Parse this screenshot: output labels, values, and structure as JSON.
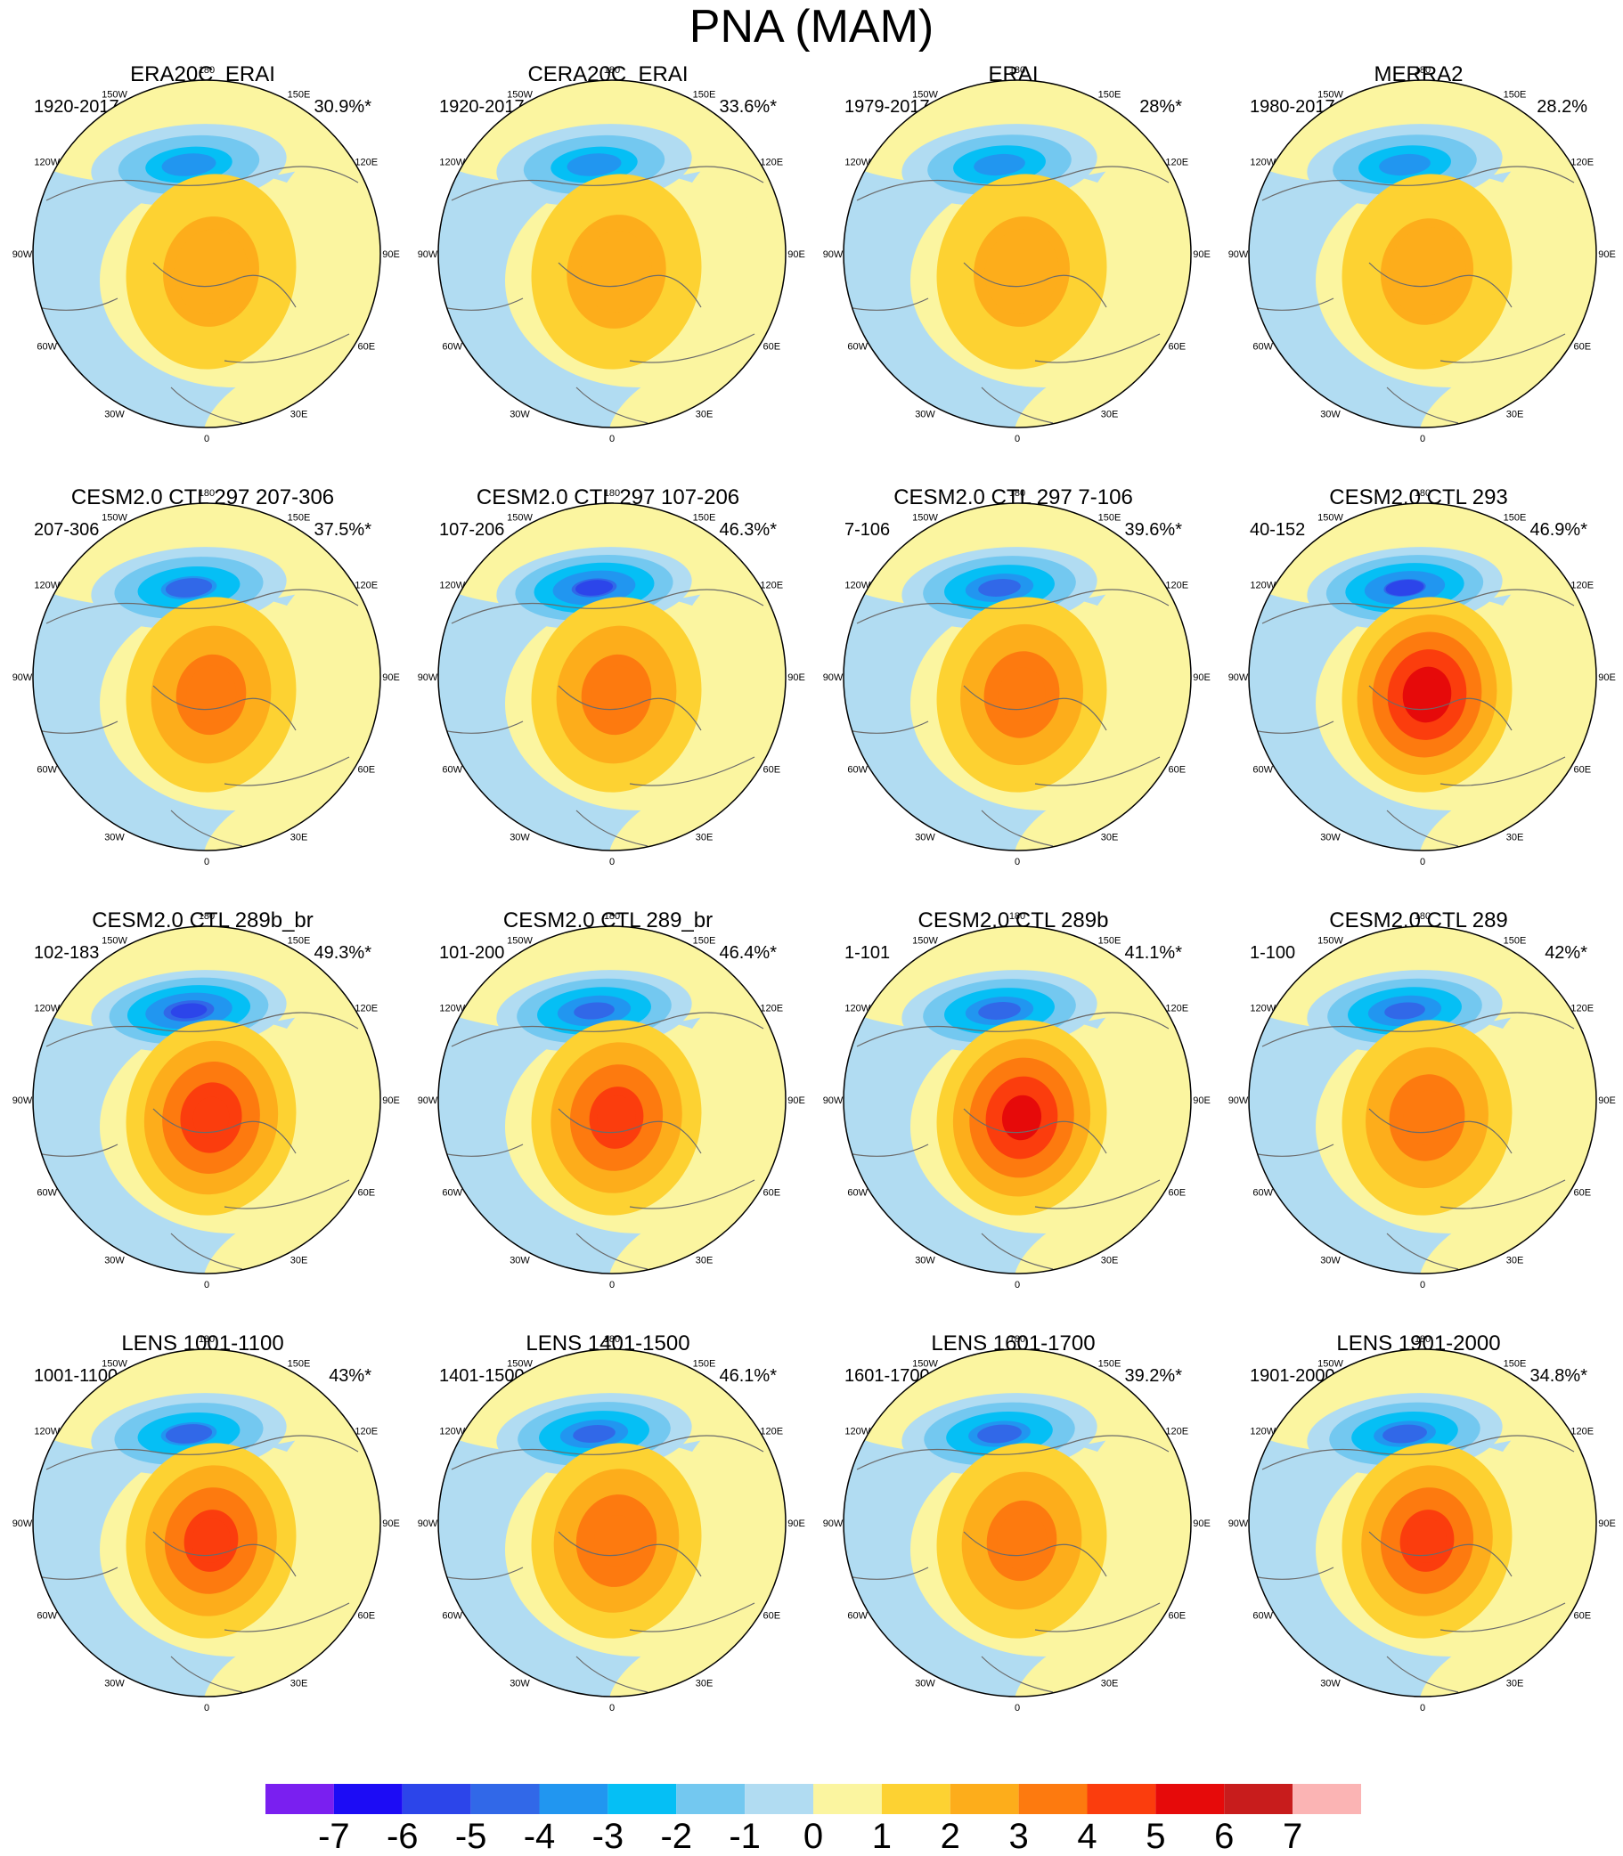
{
  "figure": {
    "title": "PNA (MAM)"
  },
  "chart_data": {
    "type": "polar-contour-map",
    "title": "PNA (MAM)",
    "projection": "north-polar-stereographic",
    "longitude_labels": [
      "180",
      "150E",
      "120E",
      "90E",
      "60E",
      "30E",
      "0",
      "30W",
      "60W",
      "90W",
      "120W",
      "150W"
    ],
    "colorbar": {
      "ticks": [
        "-7",
        "-6",
        "-5",
        "-4",
        "-3",
        "-2",
        "-1",
        "0",
        "1",
        "2",
        "3",
        "4",
        "5",
        "6",
        "7"
      ],
      "colors": [
        "#7a1ff0",
        "#1c0cf5",
        "#2c45ea",
        "#3168e8",
        "#2196f0",
        "#05bff5",
        "#73c8f0",
        "#b1dcf2",
        "#fbf5a0",
        "#fdd232",
        "#fdad1b",
        "#fd7a0f",
        "#fb3d0d",
        "#e60a0a",
        "#c81c1c",
        "#fbb4b4"
      ]
    },
    "panels": [
      {
        "title": "ERA20C_ERAI",
        "period": "1920-2017",
        "percent": "30.9%*",
        "neg_peak": -3.6,
        "pos_peak": 2.3
      },
      {
        "title": "CERA20C_ERAI",
        "period": "1920-2017",
        "percent": "33.6%*",
        "neg_peak": -3.6,
        "pos_peak": 2.4
      },
      {
        "title": "ERAI",
        "period": "1979-2017",
        "percent": "28%*",
        "neg_peak": -3.8,
        "pos_peak": 2.3
      },
      {
        "title": "MERRA2",
        "period": "1980-2017",
        "percent": "28.2%",
        "neg_peak": -3.8,
        "pos_peak": 2.2
      },
      {
        "title": "CESM2.0 CTL 297 207-306",
        "period": "207-306",
        "percent": "37.5%*",
        "neg_peak": -4.2,
        "pos_peak": 3.4
      },
      {
        "title": "CESM2.0 CTL 297 107-206",
        "period": "107-206",
        "percent": "46.3%*",
        "neg_peak": -5.2,
        "pos_peak": 3.4
      },
      {
        "title": "CESM2.0 CTL 297 7-106",
        "period": "7-106",
        "percent": "39.6%*",
        "neg_peak": -4.6,
        "pos_peak": 3.6
      },
      {
        "title": "CESM2.0 CTL 293",
        "period": "40-152",
        "percent": "46.9%*",
        "neg_peak": -5.1,
        "pos_peak": 5.6
      },
      {
        "title": "CESM2.0 CTL 289b_br",
        "period": "102-183",
        "percent": "49.3%*",
        "neg_peak": -5.4,
        "pos_peak": 4.7
      },
      {
        "title": "CESM2.0 CTL 289_br",
        "period": "101-200",
        "percent": "46.4%*",
        "neg_peak": -4.8,
        "pos_peak": 4.4
      },
      {
        "title": "CESM2.0 CTL 289b",
        "period": "1-101",
        "percent": "41.1%*",
        "neg_peak": -4.6,
        "pos_peak": 5.2
      },
      {
        "title": "CESM2.0 CTL 289",
        "period": "1-100",
        "percent": "42%*",
        "neg_peak": -4.8,
        "pos_peak": 3.6
      },
      {
        "title": "LENS 1001-1100",
        "period": "1001-1100",
        "percent": "43%*",
        "neg_peak": -4.2,
        "pos_peak": 4.4
      },
      {
        "title": "LENS 1401-1500",
        "period": "1401-1500",
        "percent": "46.1%*",
        "neg_peak": -4.6,
        "pos_peak": 3.8
      },
      {
        "title": "LENS 1601-1700",
        "period": "1601-1700",
        "percent": "39.2%*",
        "neg_peak": -4.4,
        "pos_peak": 3.4
      },
      {
        "title": "LENS 1901-2000",
        "period": "1901-2000",
        "percent": "34.8%*",
        "neg_peak": -4.4,
        "pos_peak": 4.4
      }
    ]
  }
}
